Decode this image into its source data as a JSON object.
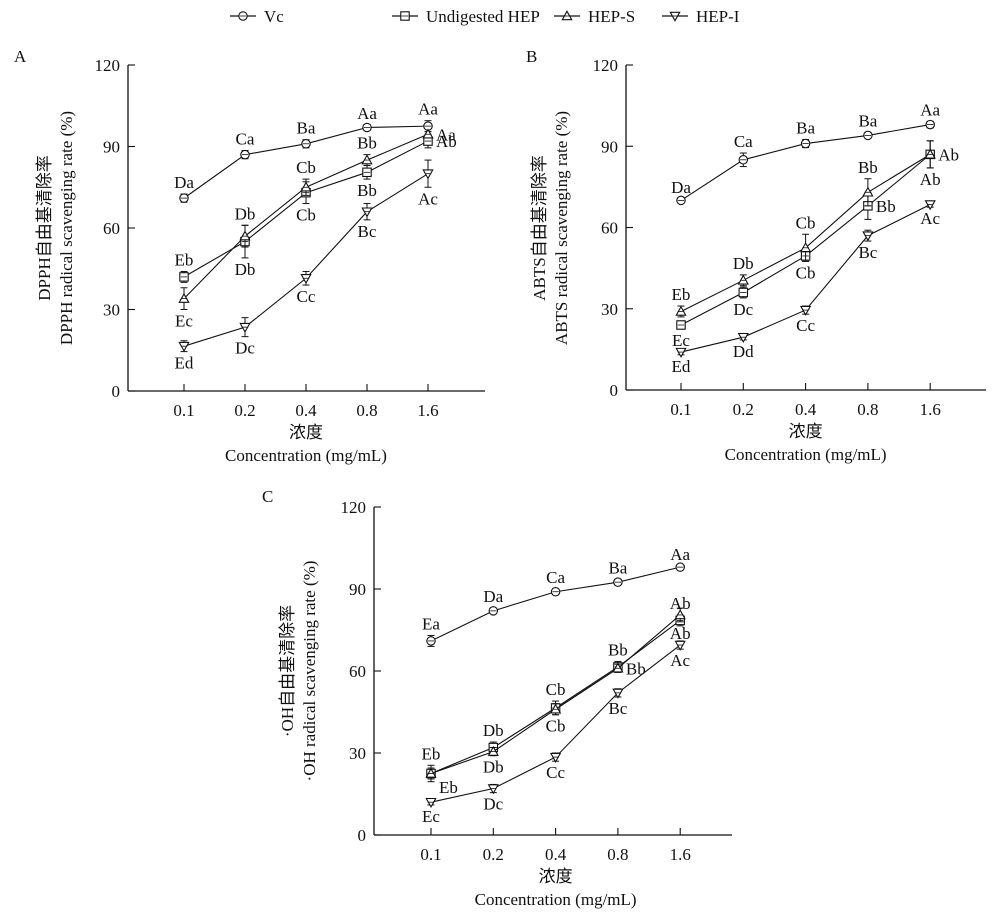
{
  "legend": {
    "items": [
      {
        "name": "Vc",
        "marker": "circle"
      },
      {
        "name": "Undigested HEP",
        "marker": "square"
      },
      {
        "name": "HEP-S",
        "marker": "triangle-up"
      },
      {
        "name": "HEP-I",
        "marker": "triangle-down"
      }
    ]
  },
  "chart_data": [
    {
      "type": "line",
      "panel": "A",
      "categories": [
        "0.1",
        "0.2",
        "0.4",
        "0.8",
        "1.6"
      ],
      "xlabel_cn": "浓度",
      "xlabel": "Concentration (mg/mL)",
      "ylabel_cn": "DPPH自由基清除率",
      "ylabel": "DPPH radical scavenging rate (%)",
      "ylim": [
        0,
        120
      ],
      "yticks": [
        0,
        30,
        60,
        90,
        120
      ],
      "grid": false,
      "series": [
        {
          "name": "Vc",
          "marker": "circle",
          "values": [
            71,
            87,
            91,
            97,
            97.5
          ],
          "errors": [
            1.5,
            1.5,
            1.5,
            1,
            2
          ],
          "labels": [
            "Da",
            "Ca",
            "Ba",
            "Aa",
            "Aa"
          ],
          "label_pos": [
            "above",
            "above",
            "above",
            "above",
            "above"
          ]
        },
        {
          "name": "Undigested HEP",
          "marker": "square",
          "values": [
            42,
            55,
            73,
            80.5,
            92
          ],
          "errors": [
            2,
            6,
            4,
            2.5,
            2.5
          ],
          "labels": [
            "Eb",
            "Db",
            "Cb",
            "Bb",
            "Ab"
          ],
          "label_pos": [
            "above",
            "below",
            "below",
            "below",
            "right"
          ]
        },
        {
          "name": "HEP-S",
          "marker": "triangle-up",
          "values": [
            34,
            57,
            75,
            85,
            94.5
          ],
          "errors": [
            4,
            4,
            3,
            2,
            1
          ],
          "labels": [
            "Ec",
            "Db",
            "Cb",
            "Bb",
            "Aa"
          ],
          "label_pos": [
            "below",
            "above",
            "above",
            "above",
            "right"
          ]
        },
        {
          "name": "HEP-I",
          "marker": "triangle-down",
          "values": [
            16.5,
            23.5,
            41.5,
            66,
            80
          ],
          "errors": [
            2,
            3.5,
            2.5,
            3,
            5
          ],
          "labels": [
            "Ed",
            "Dc",
            "Cc",
            "Bc",
            "Ac"
          ],
          "label_pos": [
            "below",
            "below",
            "below",
            "below",
            "below"
          ]
        }
      ]
    },
    {
      "type": "line",
      "panel": "B",
      "categories": [
        "0.1",
        "0.2",
        "0.4",
        "0.8",
        "1.6"
      ],
      "xlabel_cn": "浓度",
      "xlabel": "Concentration (mg/mL)",
      "ylabel_cn": "ABTS自由基清除率",
      "ylabel": "ABTS radical scavenging rate (%)",
      "ylim": [
        0,
        120
      ],
      "yticks": [
        0,
        30,
        60,
        90,
        120
      ],
      "grid": false,
      "series": [
        {
          "name": "Vc",
          "marker": "circle",
          "values": [
            70,
            85,
            91,
            94,
            98
          ],
          "errors": [
            0.5,
            2.5,
            1.5,
            1,
            1.2
          ],
          "labels": [
            "Da",
            "Ca",
            "Ba",
            "Ba",
            "Aa"
          ],
          "label_pos": [
            "above",
            "above",
            "above",
            "above",
            "above"
          ]
        },
        {
          "name": "Undigested HEP",
          "marker": "square",
          "values": [
            24,
            36,
            49.5,
            68,
            87
          ],
          "errors": [
            1.5,
            2,
            2,
            5,
            5
          ],
          "labels": [
            "Ec",
            "Dc",
            "Cb",
            "Bb",
            "Ab"
          ],
          "label_pos": [
            "below",
            "below",
            "below",
            "right",
            "below"
          ]
        },
        {
          "name": "HEP-S",
          "marker": "triangle-up",
          "values": [
            29,
            40.5,
            52.5,
            73,
            87
          ],
          "errors": [
            2,
            2,
            5,
            5,
            5
          ],
          "labels": [
            "Eb",
            "Db",
            "Cb",
            "Bb",
            "Ab"
          ],
          "label_pos": [
            "above",
            "above",
            "above",
            "above",
            "right"
          ]
        },
        {
          "name": "HEP-I",
          "marker": "triangle-down",
          "values": [
            14,
            19.5,
            29.5,
            57,
            68.5
          ],
          "errors": [
            1,
            1,
            1.5,
            2,
            1
          ],
          "labels": [
            "Ed",
            "Dd",
            "Cc",
            "Bc",
            "Ac"
          ],
          "label_pos": [
            "below",
            "below",
            "below",
            "below",
            "below"
          ]
        }
      ]
    },
    {
      "type": "line",
      "panel": "C",
      "categories": [
        "0.1",
        "0.2",
        "0.4",
        "0.8",
        "1.6"
      ],
      "xlabel_cn": "浓度",
      "xlabel": "Concentration (mg/mL)",
      "ylabel_cn": "·OH自由基清除率",
      "ylabel": "·OH radical scavenging rate (%)",
      "ylim": [
        0,
        120
      ],
      "yticks": [
        0,
        30,
        60,
        90,
        120
      ],
      "grid": false,
      "series": [
        {
          "name": "Vc",
          "marker": "circle",
          "values": [
            71,
            82,
            89,
            92.5,
            98
          ],
          "errors": [
            2,
            1,
            1,
            1,
            0.5
          ],
          "labels": [
            "Ea",
            "Da",
            "Ca",
            "Ba",
            "Aa"
          ],
          "label_pos": [
            "above",
            "above",
            "above",
            "above",
            "above"
          ]
        },
        {
          "name": "Undigested HEP",
          "marker": "square",
          "values": [
            22.5,
            32,
            46.5,
            61.5,
            78.5
          ],
          "errors": [
            3,
            2,
            2.5,
            2,
            2
          ],
          "labels": [
            "Eb",
            "Db",
            "Cb",
            "Bb",
            "Ab"
          ],
          "label_pos": [
            "above",
            "above",
            "above",
            "above",
            "above"
          ]
        },
        {
          "name": "HEP-S",
          "marker": "triangle-up",
          "values": [
            22.5,
            30.5,
            46,
            61,
            80.5
          ],
          "errors": [
            2,
            1.5,
            2,
            1.5,
            2.5
          ],
          "labels": [
            "Eb",
            "Db",
            "Cb",
            "Bb",
            "Ab"
          ],
          "label_pos": [
            "below-right",
            "below",
            "below",
            "right",
            "below"
          ]
        },
        {
          "name": "HEP-I",
          "marker": "triangle-down",
          "values": [
            12,
            17,
            28.5,
            52,
            69.5
          ],
          "errors": [
            1,
            1.5,
            1.5,
            1.5,
            1.5
          ],
          "labels": [
            "Ec",
            "Dc",
            "Cc",
            "Bc",
            "Ac"
          ],
          "label_pos": [
            "below",
            "below",
            "below",
            "below",
            "below"
          ]
        }
      ]
    }
  ]
}
